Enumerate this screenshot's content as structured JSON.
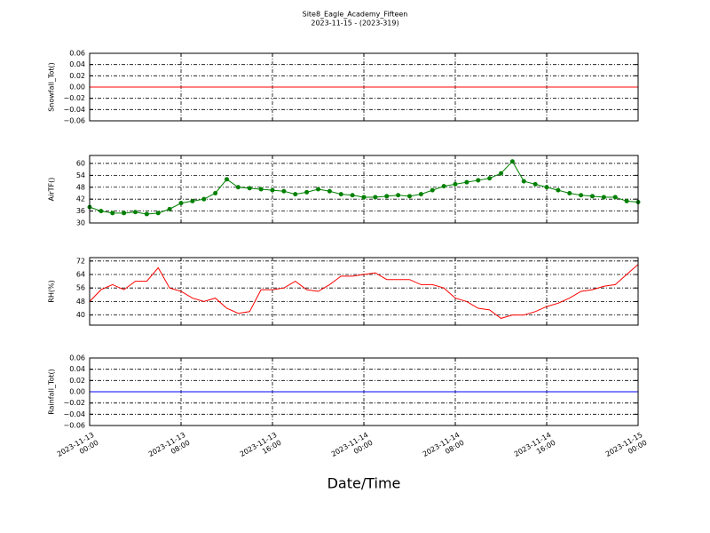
{
  "title": "Site8_Eagle_Academy_Fifteen",
  "subtitle": "2023-11-15 - (2023-319)",
  "xlabel": "Date/Time",
  "chart_data": [
    {
      "type": "line",
      "ylabel": "Snowfall_Tot()",
      "grid": true,
      "x": [
        "2023-11-13 00:00",
        "2023-11-15 00:00"
      ],
      "series": [
        {
          "color": "#ff0000",
          "values": [
            0,
            0
          ]
        }
      ],
      "xlim": [
        "2023-11-13 00:00",
        "2023-11-15 00:00"
      ],
      "xticks": [
        "2023-11-13 00:00",
        "2023-11-13 08:00",
        "2023-11-13 16:00",
        "2023-11-14 00:00",
        "2023-11-14 08:00",
        "2023-11-14 16:00",
        "2023-11-15 00:00"
      ],
      "ylim": [
        -0.06,
        0.06
      ],
      "yticks": [
        {
          "value": -0.06,
          "label": "−0.06"
        },
        {
          "value": -0.04,
          "label": "−0.04"
        },
        {
          "value": -0.02,
          "label": "−0.02"
        },
        {
          "value": 0,
          "label": "0.00"
        },
        {
          "value": 0.02,
          "label": "0.02"
        },
        {
          "value": 0.04,
          "label": "0.04"
        },
        {
          "value": 0.06,
          "label": "0.06"
        }
      ]
    },
    {
      "type": "line",
      "ylabel": "AirTF()",
      "grid": true,
      "x": [
        "2023-11-13 00:00",
        "2023-11-13 01:00",
        "2023-11-13 02:00",
        "2023-11-13 03:00",
        "2023-11-13 04:00",
        "2023-11-13 05:00",
        "2023-11-13 06:00",
        "2023-11-13 07:00",
        "2023-11-13 08:00",
        "2023-11-13 09:00",
        "2023-11-13 10:00",
        "2023-11-13 11:00",
        "2023-11-13 12:00",
        "2023-11-13 13:00",
        "2023-11-13 14:00",
        "2023-11-13 15:00",
        "2023-11-13 16:00",
        "2023-11-13 17:00",
        "2023-11-13 18:00",
        "2023-11-13 19:00",
        "2023-11-13 20:00",
        "2023-11-13 21:00",
        "2023-11-13 22:00",
        "2023-11-13 23:00",
        "2023-11-14 00:00",
        "2023-11-14 01:00",
        "2023-11-14 02:00",
        "2023-11-14 03:00",
        "2023-11-14 04:00",
        "2023-11-14 05:00",
        "2023-11-14 06:00",
        "2023-11-14 07:00",
        "2023-11-14 08:00",
        "2023-11-14 09:00",
        "2023-11-14 10:00",
        "2023-11-14 11:00",
        "2023-11-14 12:00",
        "2023-11-14 13:00",
        "2023-11-14 14:00",
        "2023-11-14 15:00",
        "2023-11-14 16:00",
        "2023-11-14 17:00",
        "2023-11-14 18:00",
        "2023-11-14 19:00",
        "2023-11-14 20:00",
        "2023-11-14 21:00",
        "2023-11-14 22:00",
        "2023-11-14 23:00",
        "2023-11-15 00:00"
      ],
      "series": [
        {
          "color": "#008000",
          "marker": "o",
          "values": [
            38,
            36,
            35,
            35,
            35.5,
            34.5,
            35,
            37,
            40,
            41,
            42,
            45,
            52,
            48,
            47.5,
            47,
            46.5,
            46,
            44.5,
            45.5,
            47,
            46,
            44.5,
            44,
            43,
            43,
            43.5,
            44,
            43.5,
            44.5,
            46.5,
            48.5,
            49.5,
            50.5,
            51.5,
            52.5,
            55,
            61,
            51,
            49.5,
            48,
            46.5,
            45,
            44,
            43.5,
            43,
            43,
            41,
            40.5
          ]
        }
      ],
      "xlim": [
        "2023-11-13 00:00",
        "2023-11-15 00:00"
      ],
      "xticks": [
        "2023-11-13 00:00",
        "2023-11-13 08:00",
        "2023-11-13 16:00",
        "2023-11-14 00:00",
        "2023-11-14 08:00",
        "2023-11-14 16:00",
        "2023-11-15 00:00"
      ],
      "ylim": [
        30,
        64
      ],
      "yticks": [
        30,
        36,
        42,
        48,
        54,
        60
      ]
    },
    {
      "type": "line",
      "ylabel": "RH(%)",
      "grid": true,
      "x": [
        "2023-11-13 00:00",
        "2023-11-13 01:00",
        "2023-11-13 02:00",
        "2023-11-13 03:00",
        "2023-11-13 04:00",
        "2023-11-13 05:00",
        "2023-11-13 06:00",
        "2023-11-13 07:00",
        "2023-11-13 08:00",
        "2023-11-13 09:00",
        "2023-11-13 10:00",
        "2023-11-13 11:00",
        "2023-11-13 12:00",
        "2023-11-13 13:00",
        "2023-11-13 14:00",
        "2023-11-13 15:00",
        "2023-11-13 16:00",
        "2023-11-13 17:00",
        "2023-11-13 18:00",
        "2023-11-13 19:00",
        "2023-11-13 20:00",
        "2023-11-13 21:00",
        "2023-11-13 22:00",
        "2023-11-13 23:00",
        "2023-11-14 00:00",
        "2023-11-14 01:00",
        "2023-11-14 02:00",
        "2023-11-14 03:00",
        "2023-11-14 04:00",
        "2023-11-14 05:00",
        "2023-11-14 06:00",
        "2023-11-14 07:00",
        "2023-11-14 08:00",
        "2023-11-14 09:00",
        "2023-11-14 10:00",
        "2023-11-14 11:00",
        "2023-11-14 12:00",
        "2023-11-14 13:00",
        "2023-11-14 14:00",
        "2023-11-14 15:00",
        "2023-11-14 16:00",
        "2023-11-14 17:00",
        "2023-11-14 18:00",
        "2023-11-14 19:00",
        "2023-11-14 20:00",
        "2023-11-14 21:00",
        "2023-11-14 22:00",
        "2023-11-14 23:00",
        "2023-11-15 00:00"
      ],
      "series": [
        {
          "color": "#ff0000",
          "values": [
            48,
            55,
            58,
            55,
            60,
            60,
            68,
            56,
            54,
            50,
            48,
            50,
            44,
            41,
            42,
            55,
            55,
            56,
            60,
            55,
            54,
            58,
            63,
            63,
            64,
            65,
            61,
            61,
            61,
            58,
            58,
            56,
            50,
            48,
            44,
            43,
            38,
            40,
            40,
            42,
            45,
            47,
            50,
            54,
            55,
            57,
            58,
            64,
            70
          ]
        }
      ],
      "xlim": [
        "2023-11-13 00:00",
        "2023-11-15 00:00"
      ],
      "xticks": [
        "2023-11-13 00:00",
        "2023-11-13 08:00",
        "2023-11-13 16:00",
        "2023-11-14 00:00",
        "2023-11-14 08:00",
        "2023-11-14 16:00",
        "2023-11-15 00:00"
      ],
      "ylim": [
        34,
        74
      ],
      "yticks": [
        40,
        48,
        56,
        64,
        72
      ]
    },
    {
      "type": "line",
      "ylabel": "Rainfall_Tot()",
      "grid": true,
      "x": [
        "2023-11-13 00:00",
        "2023-11-15 00:00"
      ],
      "series": [
        {
          "color": "#0000ff",
          "values": [
            0,
            0
          ]
        }
      ],
      "xlim": [
        "2023-11-13 00:00",
        "2023-11-15 00:00"
      ],
      "xticks": [
        {
          "value": "2023-11-13 00:00",
          "label": "2023-11-13\n00:00"
        },
        {
          "value": "2023-11-13 08:00",
          "label": "2023-11-13\n08:00"
        },
        {
          "value": "2023-11-13 16:00",
          "label": "2023-11-13\n16:00"
        },
        {
          "value": "2023-11-14 00:00",
          "label": "2023-11-14\n00:00"
        },
        {
          "value": "2023-11-14 08:00",
          "label": "2023-11-14\n08:00"
        },
        {
          "value": "2023-11-14 16:00",
          "label": "2023-11-14\n16:00"
        },
        {
          "value": "2023-11-15 00:00",
          "label": "2023-11-15\n00:00"
        }
      ],
      "ylim": [
        -0.06,
        0.06
      ],
      "yticks": [
        {
          "value": -0.06,
          "label": "−0.06"
        },
        {
          "value": -0.04,
          "label": "−0.04"
        },
        {
          "value": -0.02,
          "label": "−0.02"
        },
        {
          "value": 0,
          "label": "0.00"
        },
        {
          "value": 0.02,
          "label": "0.02"
        },
        {
          "value": 0.04,
          "label": "0.04"
        },
        {
          "value": 0.06,
          "label": "0.06"
        }
      ]
    }
  ]
}
